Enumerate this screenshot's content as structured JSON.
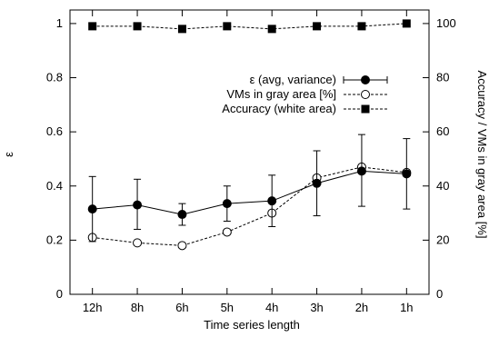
{
  "chart_data": {
    "type": "line",
    "xlabel": "Time series length",
    "ylabel_left": "ε",
    "ylabel_right": "Accuracy / VMs in gray area [%]",
    "categories": [
      "12h",
      "8h",
      "6h",
      "5h",
      "4h",
      "3h",
      "2h",
      "1h"
    ],
    "y_left_lim": [
      0,
      1.05
    ],
    "y_left_ticks": [
      "0",
      "0.2",
      "0.4",
      "0.6",
      "0.8",
      "1"
    ],
    "y_right_lim": [
      0,
      105
    ],
    "y_right_ticks": [
      "0",
      "20",
      "40",
      "60",
      "80",
      "100"
    ],
    "grid": false,
    "legend_position": "right, upper-middle",
    "series": [
      {
        "name": "ε (avg, variance)",
        "axis": "left",
        "marker": "filled-circle",
        "line": "solid",
        "values": [
          0.315,
          0.33,
          0.295,
          0.335,
          0.345,
          0.41,
          0.455,
          0.445
        ],
        "error_low": [
          0.195,
          0.24,
          0.255,
          0.27,
          0.25,
          0.29,
          0.325,
          0.315
        ],
        "error_high": [
          0.435,
          0.425,
          0.335,
          0.4,
          0.44,
          0.53,
          0.59,
          0.575
        ]
      },
      {
        "name": "VMs in gray area [%]",
        "axis": "right",
        "marker": "open-circle",
        "line": "dashed",
        "values": [
          21,
          19,
          18,
          23,
          30,
          43,
          47,
          45
        ]
      },
      {
        "name": "Accuracy (white area)",
        "axis": "right",
        "marker": "filled-square",
        "line": "dashed",
        "values": [
          99,
          99,
          98,
          99,
          98,
          99,
          99,
          100
        ]
      }
    ]
  }
}
